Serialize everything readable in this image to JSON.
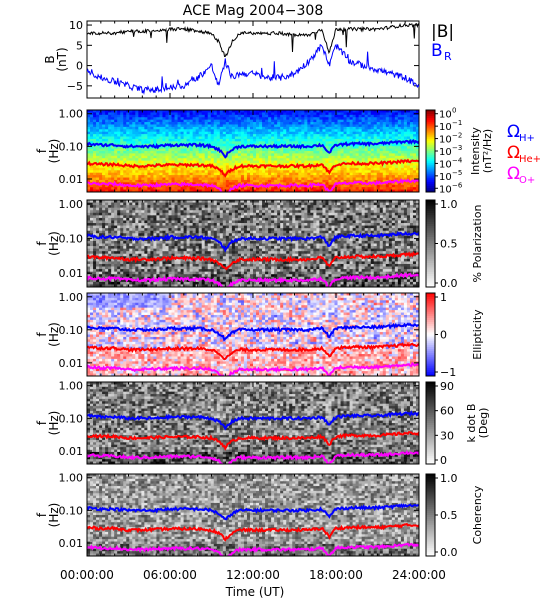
{
  "title": "ACE Mag 2004−308",
  "x_axis": {
    "label": "Time (UT)",
    "ticks": [
      "00:00:00",
      "06:00:00",
      "12:00:00",
      "18:00:00",
      "24:00:00"
    ],
    "range_hours": [
      0,
      24
    ]
  },
  "colors": {
    "B_total": "#000000",
    "B_R": "#0000ff",
    "H_plus": "#0000ff",
    "He_plus": "#ff0000",
    "O_plus": "#ff00ff"
  },
  "panels": [
    {
      "id": "b-field",
      "ylabel": [
        "B",
        "(nT)"
      ],
      "yticks": [
        "10",
        "5",
        "0",
        "−5"
      ],
      "ylim": [
        -8,
        11
      ],
      "legend": {
        "total": "|B|",
        "radial": "B",
        "radial_sub": "R"
      }
    },
    {
      "id": "intensity",
      "ylabel": [
        "f",
        "(Hz)"
      ],
      "yticks": [
        "1.00",
        "0.10",
        "0.01"
      ],
      "colorbar": {
        "label": [
          "Intensity",
          "(nT²/Hz)"
        ],
        "ticks": [
          {
            "base": "10",
            "exp": "0"
          },
          {
            "base": "10",
            "exp": "−1"
          },
          {
            "base": "10",
            "exp": "−2"
          },
          {
            "base": "10",
            "exp": "−3"
          },
          {
            "base": "10",
            "exp": "−4"
          },
          {
            "base": "10",
            "exp": "−5"
          },
          {
            "base": "10",
            "exp": "−6"
          }
        ],
        "range_log10": [
          -6.3,
          0.3
        ]
      },
      "gyro_legend": [
        {
          "symbol": "Ω",
          "sub": "H+",
          "color": "#0000ff"
        },
        {
          "symbol": "Ω",
          "sub": "He+",
          "color": "#ff0000"
        },
        {
          "symbol": "Ω",
          "sub": "O+",
          "color": "#ff00ff"
        }
      ]
    },
    {
      "id": "polarization",
      "ylabel": [
        "f",
        "(Hz)"
      ],
      "yticks": [
        "1.00",
        "0.10",
        "0.01"
      ],
      "colorbar": {
        "label": [
          "% Polarization"
        ],
        "ticks": [
          "1.0",
          "0.5",
          "0.0"
        ],
        "range": [
          0,
          1
        ]
      }
    },
    {
      "id": "ellipticity",
      "ylabel": [
        "f",
        "(Hz)"
      ],
      "yticks": [
        "1.00",
        "0.10",
        "0.01"
      ],
      "colorbar": {
        "label": [
          "Ellipticity"
        ],
        "ticks": [
          "1",
          "0",
          "−1"
        ],
        "range": [
          -1,
          1
        ]
      }
    },
    {
      "id": "kdotb",
      "ylabel": [
        "f",
        "(Hz)"
      ],
      "yticks": [
        "1.00",
        "0.10",
        "0.01"
      ],
      "colorbar": {
        "label": [
          "k dot B",
          "(Deg)"
        ],
        "ticks": [
          "90",
          "60",
          "30",
          "0"
        ],
        "range": [
          0,
          90
        ]
      }
    },
    {
      "id": "coherency",
      "ylabel": [
        "f",
        "(Hz)"
      ],
      "yticks": [
        "1.00",
        "0.10",
        "0.01"
      ],
      "colorbar": {
        "label": [
          "Coherency"
        ],
        "ticks": [
          "1.0",
          "0.5",
          "0.0"
        ],
        "range": [
          0,
          1
        ]
      }
    }
  ],
  "chart_data": [
    {
      "type": "line",
      "ylabel": "B (nT)",
      "xlabel": "Time (UT)",
      "xlim": [
        0,
        24
      ],
      "ylim": [
        -8,
        11
      ],
      "x": [
        0,
        1,
        2,
        3,
        4,
        5,
        6,
        7,
        8,
        9,
        9.5,
        10,
        10.5,
        11,
        12,
        13,
        14,
        15,
        16,
        17,
        17.5,
        18,
        19,
        20,
        21,
        22,
        23,
        24
      ],
      "series": [
        {
          "name": "|B|",
          "values": [
            8,
            8,
            8,
            8.5,
            8.5,
            8.5,
            9,
            9,
            8.5,
            8,
            6,
            2,
            6,
            8,
            8,
            8,
            8,
            7.5,
            7.5,
            9,
            3,
            9,
            9,
            9,
            9,
            9.5,
            10,
            10
          ]
        },
        {
          "name": "B_R",
          "values": [
            -1,
            -3,
            -4,
            -5,
            -6,
            -6,
            -5.5,
            -5,
            -3,
            0,
            -5,
            1,
            -3,
            -2,
            -2,
            -3,
            -3,
            -2,
            1,
            5,
            0,
            5,
            1,
            0,
            -1,
            -2,
            -3,
            -5
          ]
        }
      ]
    },
    {
      "type": "heatmap",
      "ylabel": "f (Hz)",
      "xlabel": "Time (UT)",
      "xlim": [
        0,
        24
      ],
      "ylim": [
        0.004,
        1.3
      ],
      "x": [
        0,
        1,
        2,
        3,
        4,
        5,
        6,
        7,
        8,
        9,
        9.5,
        10,
        10.5,
        11,
        12,
        13,
        14,
        15,
        16,
        17,
        17.5,
        18,
        19,
        20,
        21,
        22,
        23,
        24
      ],
      "series": [
        {
          "name": "ΩH+",
          "values": [
            0.12,
            0.11,
            0.11,
            0.1,
            0.1,
            0.1,
            0.11,
            0.11,
            0.11,
            0.1,
            0.08,
            0.05,
            0.08,
            0.1,
            0.1,
            0.1,
            0.1,
            0.1,
            0.1,
            0.11,
            0.06,
            0.11,
            0.12,
            0.12,
            0.12,
            0.13,
            0.14,
            0.14
          ]
        },
        {
          "name": "ΩHe+",
          "values": [
            0.03,
            0.028,
            0.028,
            0.025,
            0.025,
            0.026,
            0.027,
            0.027,
            0.027,
            0.025,
            0.02,
            0.013,
            0.02,
            0.025,
            0.025,
            0.025,
            0.025,
            0.025,
            0.025,
            0.028,
            0.015,
            0.028,
            0.03,
            0.03,
            0.03,
            0.032,
            0.035,
            0.035
          ]
        },
        {
          "name": "ΩO+",
          "values": [
            0.0075,
            0.007,
            0.007,
            0.0063,
            0.0063,
            0.0065,
            0.0068,
            0.0068,
            0.0068,
            0.0063,
            0.005,
            0.0033,
            0.005,
            0.0063,
            0.0063,
            0.0063,
            0.0063,
            0.0063,
            0.0063,
            0.007,
            0.0038,
            0.007,
            0.0075,
            0.0075,
            0.0075,
            0.008,
            0.0088,
            0.0088
          ]
        }
      ]
    }
  ]
}
